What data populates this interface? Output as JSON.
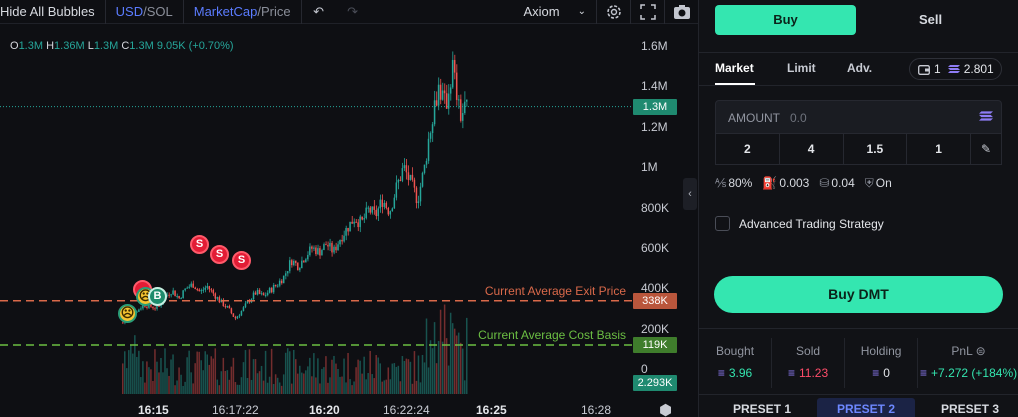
{
  "toolbar": {
    "hide_bubbles_label": "Hide All Bubbles",
    "currency_primary": "USD",
    "currency_secondary": "/SOL",
    "mode_primary": "MarketCap",
    "mode_secondary": "/Price",
    "provider": "Axiom"
  },
  "ohlc": {
    "o_label": "O",
    "o_value": "1.3M",
    "h_label": "H",
    "h_value": "1.36M",
    "l_label": "L",
    "l_value": "1.3M",
    "c_label": "C",
    "c_value": "1.3M",
    "change": "9.05K (+0.70%)"
  },
  "chart_data": {
    "type": "candlestick",
    "y_axis_ticks": [
      "1.6M",
      "1.4M",
      "1.2M",
      "1M",
      "800K",
      "600K",
      "400K",
      "200K",
      "0"
    ],
    "y_axis_values": [
      1600000,
      1400000,
      1200000,
      1000000,
      800000,
      600000,
      400000,
      200000,
      0
    ],
    "x_axis_ticks": [
      "16:15",
      "16:17:22",
      "16:20",
      "16:22:24",
      "16:25",
      "16:28"
    ],
    "x_axis_bold": [
      true,
      false,
      true,
      false,
      true,
      false
    ],
    "ylim": [
      0,
      1600000
    ],
    "close_series": [
      230000,
      250000,
      290000,
      320000,
      310000,
      300000,
      360000,
      390000,
      350000,
      400000,
      420000,
      380000,
      410000,
      370000,
      330000,
      300000,
      250000,
      290000,
      340000,
      380000,
      360000,
      390000,
      420000,
      460000,
      540000,
      510000,
      560000,
      600000,
      580000,
      620000,
      580000,
      650000,
      700000,
      750000,
      720000,
      790000,
      760000,
      840000,
      780000,
      900000,
      1000000,
      920000,
      840000,
      1000000,
      1250000,
      1400000,
      1300000,
      1500000,
      1250000,
      1300000
    ],
    "current_price_label": "1.3M",
    "current_price_value": 1300000,
    "exit_line_label": "Current Average Exit Price",
    "exit_line_tag": "338K",
    "exit_line_value": 338000,
    "cost_line_label": "Current Average Cost Basis",
    "cost_line_tag": "119K",
    "cost_line_value": 119000,
    "volume_tag": "2.293K",
    "colors": {
      "up": "#26a69a",
      "down": "#ef5350",
      "exit_line": "#d9694a",
      "cost_line": "#6cbf43",
      "price_line": "#26a69a"
    }
  },
  "bubbles": {
    "sell_label": "S",
    "buy_label": "B"
  },
  "trade": {
    "buy_tab": "Buy",
    "sell_tab": "Sell",
    "order_tabs": [
      "Market",
      "Limit",
      "Adv."
    ],
    "wallet_count": "1",
    "wallet_balance": "2.801",
    "amount_label": "AMOUNT",
    "amount_placeholder": "0.0",
    "preset_amounts": [
      "2",
      "4",
      "1.5",
      "1"
    ],
    "slippage": "80%",
    "priority_fee": "0.003",
    "bribe": "0.04",
    "mev_protect": "On",
    "advanced_strategy_label": "Advanced Trading Strategy",
    "buy_button_label": "Buy DMT"
  },
  "stats": {
    "bought_label": "Bought",
    "bought_value": "3.96",
    "sold_label": "Sold",
    "sold_value": "11.23",
    "holding_label": "Holding",
    "holding_value": "0",
    "pnl_label": "PnL",
    "pnl_value": "+7.272 (+184%)",
    "colors": {
      "bought": "#34e6b0",
      "sold": "#ff4d6a",
      "pnl": "#34e6b0"
    }
  },
  "presets": [
    "PRESET 1",
    "PRESET 2",
    "PRESET 3"
  ]
}
